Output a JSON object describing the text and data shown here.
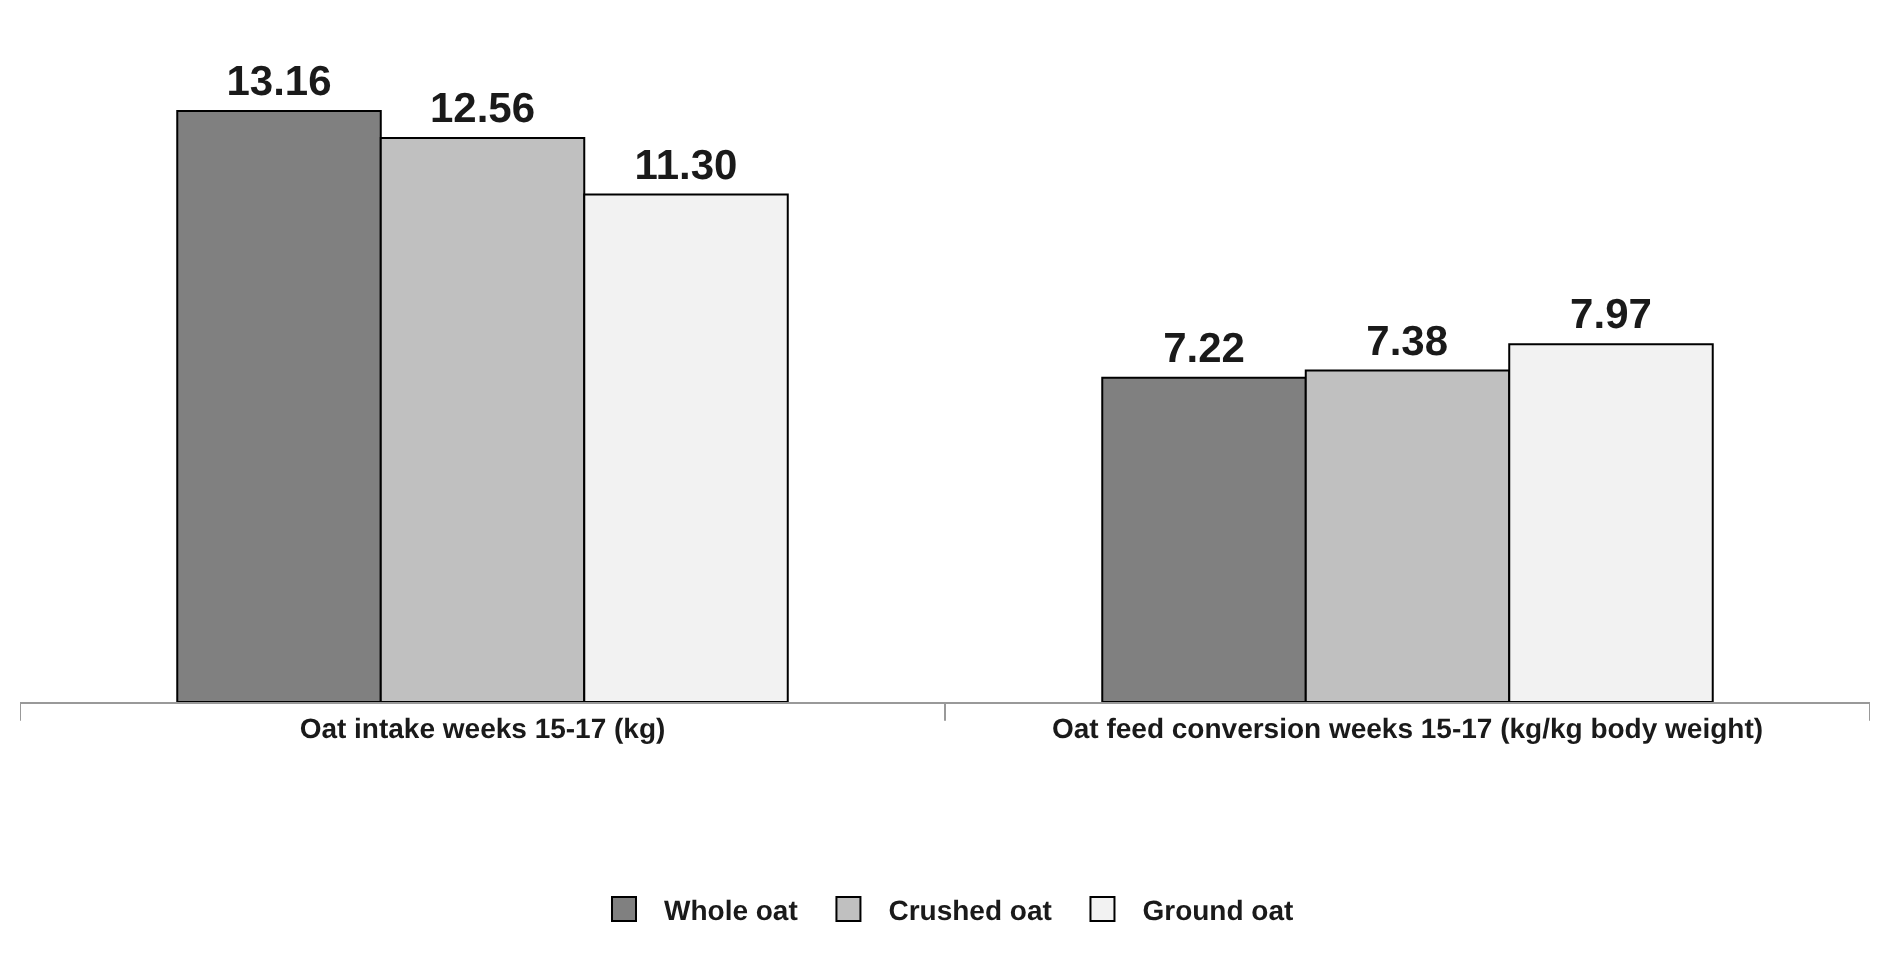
{
  "chart_data": {
    "type": "bar",
    "categories": [
      "Oat intake weeks 15-17 (kg)",
      "Oat feed conversion weeks 15-17 (kg/kg body weight)"
    ],
    "series": [
      {
        "name": "Whole oat",
        "color": "#808080",
        "values": [
          13.16,
          7.22
        ],
        "value_labels": [
          "13.16",
          "7.22"
        ]
      },
      {
        "name": "Crushed oat",
        "color": "#c0c0c0",
        "values": [
          12.56,
          7.38
        ],
        "value_labels": [
          "12.56",
          "7.38"
        ]
      },
      {
        "name": "Ground oat",
        "color": "#f2f2f2",
        "values": [
          11.3,
          7.97
        ],
        "value_labels": [
          "11.30",
          "7.97"
        ]
      }
    ],
    "tick_labels": "x",
    "grid": false,
    "legend": "bottom"
  }
}
